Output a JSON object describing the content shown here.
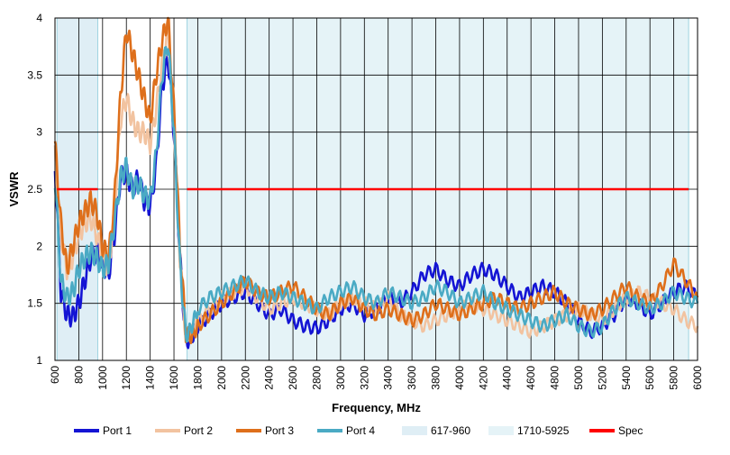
{
  "chart_data": {
    "type": "line",
    "xlabel": "Frequency, MHz",
    "ylabel": "VSWR",
    "xlim": [
      600,
      6000
    ],
    "ylim": [
      1,
      4
    ],
    "grid": true,
    "legend_position": "bottom",
    "x_ticks": [
      "600",
      "800",
      "1000",
      "1200",
      "1400",
      "1600",
      "1800",
      "2000",
      "2200",
      "2400",
      "2600",
      "2800",
      "3000",
      "3200",
      "3400",
      "3600",
      "3800",
      "4000",
      "4200",
      "4400",
      "4600",
      "4800",
      "5000",
      "5200",
      "5400",
      "5600",
      "5800",
      "6000"
    ],
    "y_ticks": [
      "1",
      "1.5",
      "2",
      "2.5",
      "3",
      "3.5",
      "4"
    ],
    "bands": [
      {
        "name": "617-960",
        "range": [
          617,
          960
        ],
        "color": "#dfeef5"
      },
      {
        "name": "1710-5925",
        "range": [
          1710,
          5925
        ],
        "color": "#e5f3f7"
      }
    ],
    "spec": {
      "name": "Spec",
      "color": "#ff0000",
      "segments": [
        [
          617,
          960,
          2.5
        ],
        [
          1710,
          5925,
          2.5
        ]
      ]
    },
    "series": [
      {
        "name": "Port 1",
        "color": "#1414d4",
        "x": [
          600,
          650,
          700,
          750,
          800,
          850,
          900,
          950,
          1000,
          1050,
          1100,
          1150,
          1200,
          1250,
          1300,
          1350,
          1400,
          1450,
          1500,
          1550,
          1600,
          1650,
          1700,
          1750,
          1800,
          1900,
          2000,
          2100,
          2200,
          2300,
          2400,
          2500,
          2600,
          2700,
          2800,
          2900,
          3000,
          3100,
          3200,
          3300,
          3400,
          3500,
          3600,
          3700,
          3800,
          3900,
          4000,
          4100,
          4200,
          4300,
          4400,
          4500,
          4600,
          4700,
          4800,
          4900,
          5000,
          5100,
          5200,
          5300,
          5400,
          5500,
          5600,
          5700,
          5800,
          5900,
          6000
        ],
        "y": [
          2.7,
          1.6,
          1.4,
          1.38,
          1.5,
          1.7,
          1.9,
          1.95,
          1.85,
          1.75,
          2.1,
          2.6,
          2.65,
          2.5,
          2.6,
          2.4,
          2.35,
          2.7,
          3.4,
          3.65,
          3.0,
          1.9,
          1.15,
          1.2,
          1.3,
          1.4,
          1.5,
          1.55,
          1.6,
          1.5,
          1.4,
          1.45,
          1.35,
          1.3,
          1.28,
          1.35,
          1.45,
          1.5,
          1.4,
          1.45,
          1.55,
          1.5,
          1.6,
          1.75,
          1.8,
          1.7,
          1.65,
          1.75,
          1.8,
          1.75,
          1.65,
          1.55,
          1.6,
          1.65,
          1.6,
          1.5,
          1.35,
          1.25,
          1.3,
          1.4,
          1.55,
          1.5,
          1.4,
          1.5,
          1.6,
          1.65,
          1.55
        ]
      },
      {
        "name": "Port 2",
        "color": "#f2c3a0",
        "x": [
          600,
          650,
          700,
          750,
          800,
          850,
          900,
          950,
          1000,
          1050,
          1100,
          1150,
          1200,
          1250,
          1300,
          1350,
          1400,
          1450,
          1500,
          1550,
          1600,
          1650,
          1700,
          1750,
          1800,
          1900,
          2000,
          2100,
          2200,
          2300,
          2400,
          2500,
          2600,
          2700,
          2800,
          2900,
          3000,
          3100,
          3200,
          3300,
          3400,
          3500,
          3600,
          3700,
          3800,
          3900,
          4000,
          4100,
          4200,
          4300,
          4400,
          4500,
          4600,
          4700,
          4800,
          4900,
          5000,
          5100,
          5200,
          5300,
          5400,
          5500,
          5600,
          5700,
          5800,
          5900,
          6000
        ],
        "y": [
          2.8,
          2.1,
          1.8,
          1.9,
          2.1,
          2.2,
          2.25,
          2.1,
          1.9,
          1.8,
          2.3,
          3.1,
          3.3,
          3.1,
          3.0,
          3.0,
          2.9,
          3.2,
          3.6,
          3.9,
          3.1,
          1.9,
          1.2,
          1.25,
          1.35,
          1.45,
          1.55,
          1.6,
          1.65,
          1.55,
          1.45,
          1.5,
          1.55,
          1.5,
          1.45,
          1.4,
          1.5,
          1.55,
          1.5,
          1.45,
          1.55,
          1.4,
          1.35,
          1.3,
          1.35,
          1.4,
          1.45,
          1.5,
          1.45,
          1.4,
          1.35,
          1.3,
          1.25,
          1.3,
          1.35,
          1.4,
          1.45,
          1.4,
          1.35,
          1.45,
          1.55,
          1.6,
          1.55,
          1.5,
          1.45,
          1.35,
          1.3
        ]
      },
      {
        "name": "Port 3",
        "color": "#de6f1b",
        "x": [
          600,
          650,
          700,
          750,
          800,
          850,
          900,
          950,
          1000,
          1050,
          1100,
          1150,
          1200,
          1250,
          1300,
          1350,
          1400,
          1450,
          1500,
          1550,
          1600,
          1650,
          1700,
          1750,
          1800,
          1900,
          2000,
          2100,
          2200,
          2300,
          2400,
          2500,
          2600,
          2700,
          2800,
          2900,
          3000,
          3100,
          3200,
          3300,
          3400,
          3500,
          3600,
          3700,
          3800,
          3900,
          4000,
          4100,
          4200,
          4300,
          4400,
          4500,
          4600,
          4700,
          4800,
          4900,
          5000,
          5100,
          5200,
          5300,
          5400,
          5500,
          5600,
          5700,
          5800,
          5900,
          6000
        ],
        "y": [
          2.9,
          2.2,
          1.8,
          2.0,
          2.2,
          2.3,
          2.4,
          2.3,
          2.0,
          1.9,
          2.4,
          3.3,
          3.9,
          3.7,
          3.5,
          3.3,
          3.1,
          3.5,
          3.8,
          4.0,
          3.2,
          2.0,
          1.25,
          1.2,
          1.3,
          1.4,
          1.5,
          1.6,
          1.7,
          1.6,
          1.55,
          1.6,
          1.65,
          1.55,
          1.45,
          1.4,
          1.5,
          1.55,
          1.45,
          1.4,
          1.45,
          1.4,
          1.35,
          1.4,
          1.5,
          1.45,
          1.4,
          1.45,
          1.5,
          1.55,
          1.5,
          1.45,
          1.5,
          1.55,
          1.6,
          1.5,
          1.45,
          1.4,
          1.45,
          1.55,
          1.65,
          1.55,
          1.5,
          1.65,
          1.85,
          1.7,
          1.55
        ]
      },
      {
        "name": "Port 4",
        "color": "#4aaac4",
        "x": [
          600,
          650,
          700,
          750,
          800,
          850,
          900,
          950,
          1000,
          1050,
          1100,
          1150,
          1200,
          1250,
          1300,
          1350,
          1400,
          1450,
          1500,
          1550,
          1600,
          1650,
          1700,
          1750,
          1800,
          1900,
          2000,
          2100,
          2200,
          2300,
          2400,
          2500,
          2600,
          2700,
          2800,
          2900,
          3000,
          3100,
          3200,
          3300,
          3400,
          3500,
          3600,
          3700,
          3800,
          3900,
          4000,
          4100,
          4200,
          4300,
          4400,
          4500,
          4600,
          4700,
          4800,
          4900,
          5000,
          5100,
          5200,
          5300,
          5400,
          5500,
          5600,
          5700,
          5800,
          5900,
          6000
        ],
        "y": [
          2.6,
          1.7,
          1.55,
          1.6,
          1.8,
          1.9,
          1.95,
          1.9,
          1.8,
          1.85,
          2.2,
          2.6,
          2.7,
          2.5,
          2.55,
          2.45,
          2.4,
          2.8,
          3.5,
          3.8,
          3.0,
          1.85,
          1.2,
          1.3,
          1.45,
          1.55,
          1.6,
          1.65,
          1.7,
          1.6,
          1.55,
          1.6,
          1.55,
          1.5,
          1.45,
          1.55,
          1.6,
          1.65,
          1.55,
          1.5,
          1.6,
          1.55,
          1.5,
          1.55,
          1.65,
          1.6,
          1.5,
          1.55,
          1.6,
          1.5,
          1.45,
          1.4,
          1.35,
          1.3,
          1.35,
          1.4,
          1.3,
          1.25,
          1.3,
          1.45,
          1.55,
          1.5,
          1.45,
          1.5,
          1.6,
          1.55,
          1.5
        ]
      }
    ],
    "legend": [
      {
        "label": "Port 1",
        "kind": "line",
        "color": "#1414d4"
      },
      {
        "label": "Port 2",
        "kind": "line",
        "color": "#f2c3a0"
      },
      {
        "label": "Port 3",
        "kind": "line",
        "color": "#de6f1b"
      },
      {
        "label": "Port 4",
        "kind": "line",
        "color": "#4aaac4"
      },
      {
        "label": "617-960",
        "kind": "band",
        "color": "#dfeef5"
      },
      {
        "label": "1710-5925",
        "kind": "band",
        "color": "#e5f3f7"
      },
      {
        "label": "Spec",
        "kind": "line",
        "color": "#ff0000"
      }
    ]
  }
}
